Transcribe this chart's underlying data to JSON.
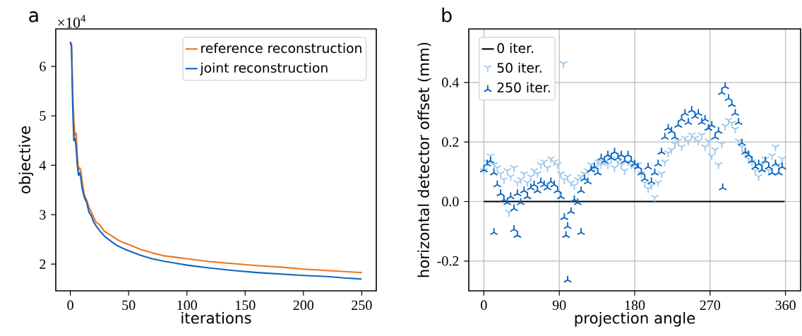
{
  "chart_data": [
    {
      "type": "line",
      "title": "a",
      "xlabel": "iterations",
      "ylabel": "objective",
      "annotations": [
        "×10$^{4}$"
      ],
      "xlim": [
        -12.5,
        262.5
      ],
      "ylim": [
        1.46,
        6.76
      ],
      "xticks": [
        0,
        50,
        100,
        150,
        200,
        250
      ],
      "yticks": [
        2,
        3,
        4,
        5,
        6
      ],
      "legend": "top right",
      "grid": false,
      "series": [
        {
          "name": "reference reconstruction",
          "color": "#e87722",
          "x": [
            0,
            1,
            2,
            3,
            4,
            5,
            6,
            7,
            8,
            9,
            10,
            12,
            14,
            16,
            18,
            20,
            22,
            25,
            28,
            30,
            35,
            40,
            45,
            50,
            60,
            70,
            80,
            90,
            100,
            120,
            140,
            150,
            160,
            180,
            200,
            220,
            250
          ],
          "values": [
            6.5,
            6.45,
            5.5,
            4.9,
            4.6,
            4.65,
            4.2,
            3.9,
            3.95,
            3.9,
            3.7,
            3.4,
            3.3,
            3.15,
            3.05,
            2.95,
            2.85,
            2.8,
            2.7,
            2.65,
            2.58,
            2.5,
            2.44,
            2.4,
            2.3,
            2.23,
            2.17,
            2.14,
            2.11,
            2.05,
            2.01,
            1.99,
            1.97,
            1.94,
            1.9,
            1.87,
            1.83
          ]
        },
        {
          "name": "joint reconstruction",
          "color": "#1565c0",
          "x": [
            0,
            1,
            2,
            3,
            4,
            5,
            6,
            7,
            8,
            9,
            10,
            12,
            14,
            16,
            18,
            20,
            22,
            25,
            28,
            30,
            35,
            40,
            45,
            50,
            60,
            70,
            80,
            90,
            100,
            120,
            140,
            160,
            180,
            200,
            220,
            235,
            250
          ],
          "values": [
            6.5,
            6.4,
            5.2,
            4.5,
            4.55,
            4.35,
            4.0,
            3.8,
            3.85,
            3.75,
            3.55,
            3.35,
            3.25,
            3.05,
            2.98,
            2.85,
            2.78,
            2.68,
            2.6,
            2.55,
            2.46,
            2.38,
            2.32,
            2.27,
            2.18,
            2.11,
            2.06,
            2.02,
            1.98,
            1.92,
            1.87,
            1.83,
            1.8,
            1.77,
            1.75,
            1.72,
            1.7
          ]
        }
      ]
    },
    {
      "type": "scatter",
      "title": "b",
      "xlabel": "projection angle",
      "ylabel": "horizontal detector offset (mm)",
      "xlim": [
        -18,
        378
      ],
      "ylim": [
        -0.3,
        0.58
      ],
      "xticks": [
        0,
        90,
        180,
        270,
        360
      ],
      "yticks": [
        -0.2,
        {
          "value": 0,
          "label": "0.0"
        },
        0.2,
        0.4
      ],
      "legend": "top left",
      "grid": true,
      "series": [
        {
          "name": "0 iter.",
          "type": "line",
          "color": "#000000",
          "x": [
            0,
            359
          ],
          "values": [
            0,
            0
          ]
        },
        {
          "name": "50 iter.",
          "color": "#9ec9ec",
          "x": [
            0,
            4,
            8,
            12,
            16,
            20,
            24,
            28,
            32,
            36,
            40,
            44,
            48,
            52,
            56,
            60,
            64,
            68,
            72,
            76,
            80,
            84,
            88,
            92,
            96,
            100,
            104,
            108,
            112,
            116,
            120,
            124,
            128,
            132,
            136,
            140,
            144,
            148,
            152,
            156,
            160,
            164,
            168,
            172,
            176,
            180,
            184,
            188,
            192,
            196,
            200,
            204,
            208,
            212,
            216,
            220,
            224,
            228,
            232,
            236,
            240,
            244,
            248,
            252,
            256,
            260,
            264,
            268,
            272,
            276,
            280,
            284,
            288,
            292,
            296,
            300,
            304,
            308,
            312,
            316,
            320,
            324,
            328,
            332,
            336,
            340,
            344,
            348,
            352,
            356,
            95,
            30
          ],
          "values": [
            0.1,
            0.13,
            0.15,
            0.12,
            0.11,
            0.09,
            0.07,
            0.1,
            0.08,
            0.11,
            0.06,
            0.07,
            0.09,
            0.06,
            0.08,
            0.1,
            0.09,
            0.12,
            0.13,
            0.11,
            0.14,
            0.13,
            0.12,
            0.09,
            0.07,
            0.08,
            0.06,
            0.05,
            0.07,
            0.08,
            0.09,
            0.1,
            0.12,
            0.11,
            0.13,
            0.12,
            0.13,
            0.12,
            0.14,
            0.11,
            0.13,
            0.12,
            0.1,
            0.13,
            0.12,
            0.11,
            0.12,
            0.09,
            0.06,
            0.04,
            0.05,
            0.01,
            0.06,
            0.09,
            0.13,
            0.16,
            0.17,
            0.19,
            0.2,
            0.18,
            0.21,
            0.2,
            0.22,
            0.21,
            0.2,
            0.22,
            0.18,
            0.2,
            0.15,
            0.17,
            0.12,
            0.19,
            0.25,
            0.27,
            0.26,
            0.24,
            0.2,
            0.18,
            0.16,
            0.14,
            0.13,
            0.1,
            0.08,
            0.12,
            0.14,
            0.1,
            0.15,
            0.18,
            0.12,
            0.14,
            0.46,
            -0.04
          ]
        },
        {
          "name": "250 iter.",
          "color": "#0a64bd",
          "x": [
            0,
            4,
            8,
            12,
            16,
            20,
            24,
            28,
            32,
            36,
            40,
            44,
            48,
            52,
            56,
            60,
            64,
            68,
            72,
            76,
            80,
            84,
            88,
            92,
            96,
            100,
            104,
            108,
            112,
            116,
            120,
            124,
            128,
            132,
            136,
            140,
            144,
            148,
            152,
            156,
            160,
            164,
            168,
            172,
            176,
            180,
            184,
            188,
            192,
            196,
            200,
            204,
            208,
            212,
            216,
            220,
            224,
            228,
            232,
            236,
            240,
            244,
            248,
            252,
            256,
            260,
            264,
            268,
            272,
            276,
            280,
            284,
            288,
            292,
            296,
            300,
            304,
            308,
            312,
            316,
            320,
            324,
            328,
            332,
            336,
            340,
            344,
            348,
            352,
            356,
            12,
            36,
            40,
            98,
            100,
            116,
            285
          ],
          "values": [
            0.11,
            0.13,
            0.14,
            0.1,
            0.06,
            0.03,
            0.01,
            0.0,
            0.02,
            -0.02,
            0.03,
            0.0,
            0.04,
            0.02,
            0.05,
            0.06,
            0.04,
            0.07,
            0.06,
            0.05,
            0.07,
            0.06,
            0.04,
            0.02,
            -0.05,
            -0.08,
            -0.03,
            0.01,
            0.0,
            0.04,
            0.08,
            0.07,
            0.11,
            0.12,
            0.1,
            0.15,
            0.14,
            0.16,
            0.15,
            0.17,
            0.15,
            0.16,
            0.14,
            0.16,
            0.14,
            0.13,
            0.12,
            0.1,
            0.08,
            0.12,
            0.07,
            0.1,
            0.13,
            0.17,
            0.22,
            0.25,
            0.24,
            0.22,
            0.26,
            0.28,
            0.3,
            0.27,
            0.31,
            0.29,
            0.3,
            0.27,
            0.28,
            0.25,
            0.26,
            0.22,
            0.24,
            0.37,
            0.39,
            0.35,
            0.33,
            0.3,
            0.27,
            0.2,
            0.17,
            0.16,
            0.14,
            0.12,
            0.13,
            0.11,
            0.14,
            0.12,
            0.1,
            0.13,
            0.1,
            0.12,
            -0.1,
            -0.09,
            -0.11,
            -0.11,
            -0.26,
            -0.1,
            0.05
          ]
        }
      ]
    }
  ]
}
